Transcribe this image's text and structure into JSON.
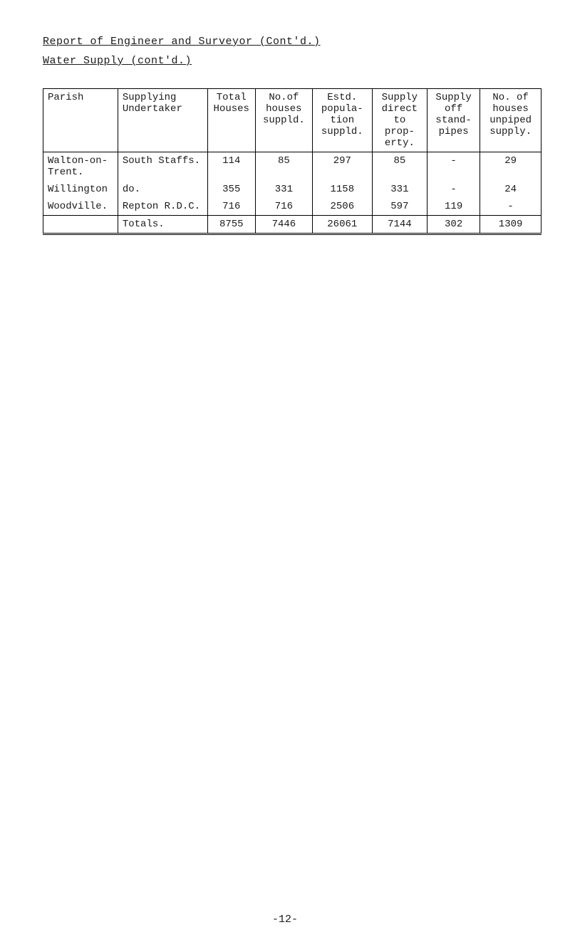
{
  "title": "Report of Engineer and Surveyor (Cont'd.)",
  "subtitle": "Water Supply (cont'd.)",
  "table": {
    "headers": {
      "parish": "Parish",
      "undertaker": "Supplying Undertaker",
      "total": "Total Houses",
      "no_of": "No.of houses suppld.",
      "estd": "Estd. popula- tion suppld.",
      "direct": "Supply direct to prop- erty.",
      "off": "Supply off stand- pipes",
      "unpiped": "No. of houses unpiped supply."
    },
    "rows": [
      {
        "parish": "Walton-on- Trent.",
        "undertaker": "South Staffs.",
        "total": "114",
        "no_of": "85",
        "estd": "297",
        "direct": "85",
        "off": "-",
        "unpiped": "29"
      },
      {
        "parish": "Willington",
        "undertaker": "do.",
        "total": "355",
        "no_of": "331",
        "estd": "1158",
        "direct": "331",
        "off": "-",
        "unpiped": "24"
      },
      {
        "parish": "Woodville.",
        "undertaker": "Repton R.D.C.",
        "total": "716",
        "no_of": "716",
        "estd": "2506",
        "direct": "597",
        "off": "119",
        "unpiped": "-"
      }
    ],
    "totals": {
      "parish": "",
      "undertaker": "Totals.",
      "total": "8755",
      "no_of": "7446",
      "estd": "26061",
      "direct": "7144",
      "off": "302",
      "unpiped": "1309"
    }
  },
  "page_number": "-12-"
}
